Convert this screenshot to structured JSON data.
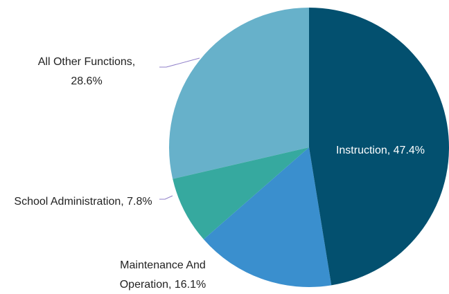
{
  "chart_data": {
    "type": "pie",
    "values": [
      47.4,
      16.1,
      7.8,
      28.6
    ],
    "value_labels": [
      "Instruction, 47.4%",
      "Maintenance And Operation, 16.1%",
      "School Administration, 7.8%",
      "All Other Functions, 28.6%"
    ],
    "colors": [
      "#03506f",
      "#3a8fce",
      "#36a99f",
      "#67b1ca"
    ]
  }
}
